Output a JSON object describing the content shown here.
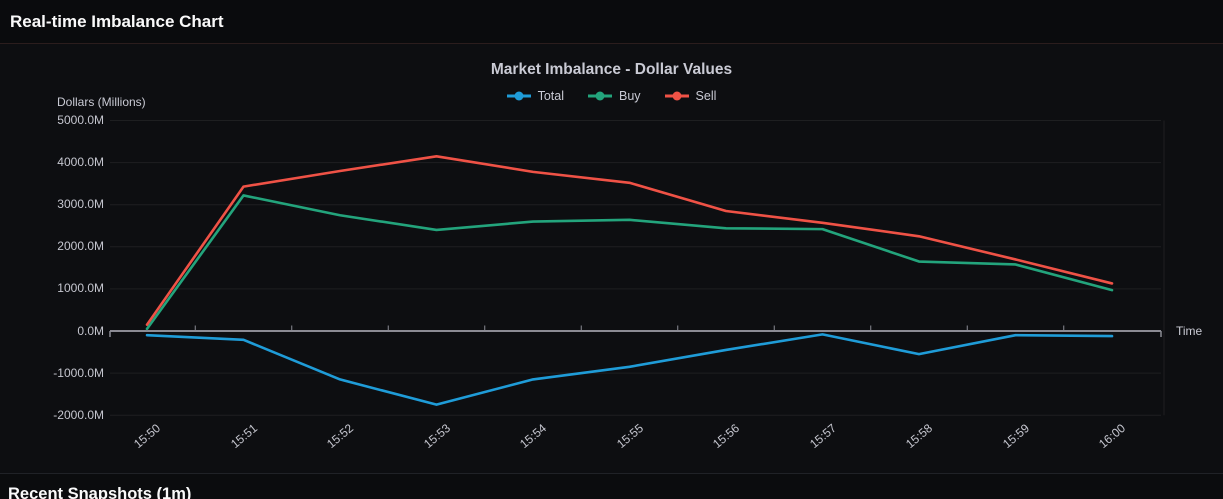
{
  "page": {
    "title": "Real-time Imbalance Chart",
    "section_footer": "Recent Snapshots (1m)"
  },
  "chart_data": {
    "type": "line",
    "title": "Market Imbalance - Dollar Values",
    "xlabel": "Time",
    "ylabel": "Dollars (Millions)",
    "x": [
      "15:50",
      "15:51",
      "15:52",
      "15:53",
      "15:54",
      "15:55",
      "15:56",
      "15:57",
      "15:58",
      "15:59",
      "16:00"
    ],
    "series": [
      {
        "name": "Total",
        "color": "#1f9cd8",
        "values": [
          -100,
          -210,
          -1150,
          -1750,
          -1150,
          -850,
          -450,
          -80,
          -550,
          -100,
          -120
        ]
      },
      {
        "name": "Buy",
        "color": "#23a47c",
        "values": [
          50,
          3220,
          2750,
          2400,
          2600,
          2640,
          2440,
          2420,
          1650,
          1580,
          970
        ]
      },
      {
        "name": "Sell",
        "color": "#ef5246",
        "values": [
          150,
          3430,
          3800,
          4150,
          3780,
          3520,
          2850,
          2570,
          2250,
          1700,
          1130
        ]
      }
    ],
    "ylim": [
      -2000,
      5000
    ],
    "y_tick_labels": [
      "5000.0M",
      "4000.0M",
      "3000.0M",
      "2000.0M",
      "1000.0M",
      "0.0M",
      "-1000.0M",
      "-2000.0M"
    ],
    "y_tick_values": [
      5000,
      4000,
      3000,
      2000,
      1000,
      0,
      -1000,
      -2000
    ],
    "grid": true,
    "legend_position": "top",
    "colors": {
      "background": "#0d0e11",
      "header_background": "#0a0b0d",
      "axis_line": "#8b8b94",
      "grid_line": "rgba(255,255,255,0.07)",
      "text": "#c9cad4"
    }
  }
}
